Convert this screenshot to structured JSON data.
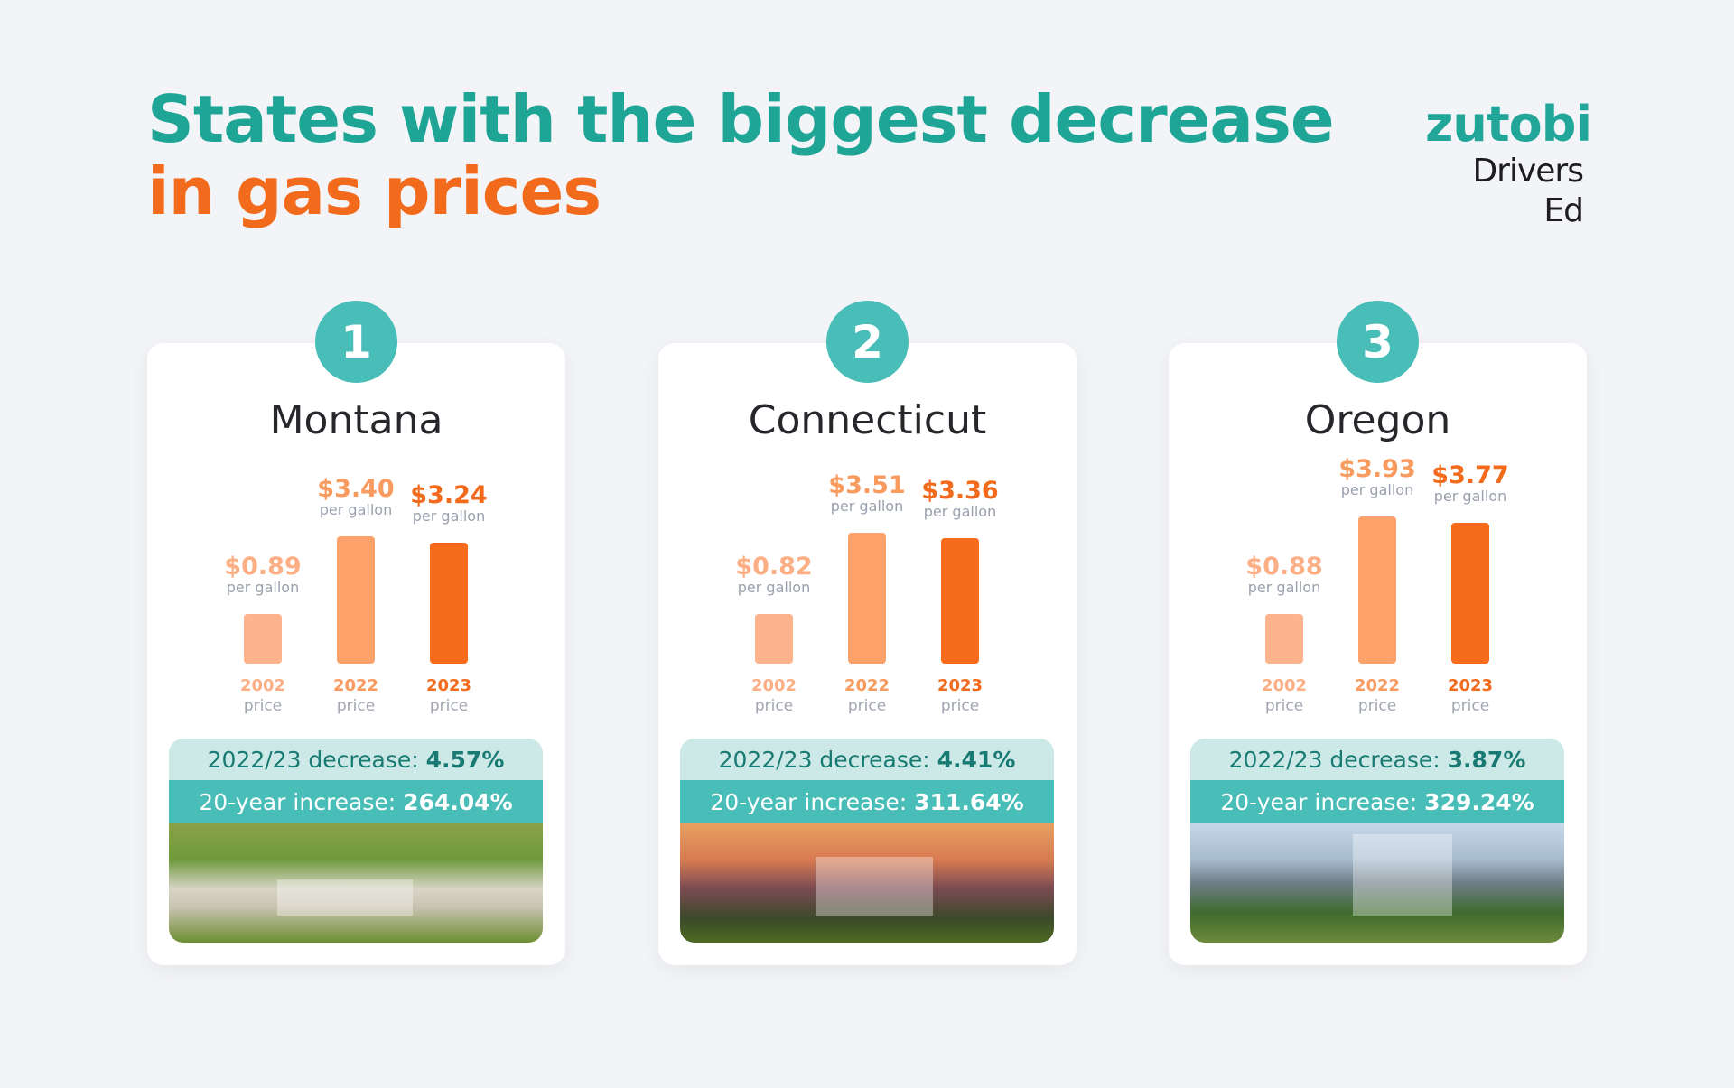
{
  "header": {
    "title_line1": "States with the biggest decrease",
    "title_line2": "in gas prices"
  },
  "logo": {
    "brand": "zutobi",
    "sub": "Drivers Ed"
  },
  "colors": {
    "teal": "#1fa596",
    "orange": "#f26a1b",
    "bar_2002": "#fdb48c",
    "bar_2022": "#fca26a",
    "bar_2023": "#f76b1c"
  },
  "labels": {
    "per_gallon": "per gallon",
    "price": "price",
    "decrease_label": "2022/23 decrease: ",
    "increase_label": "20-year increase: "
  },
  "chart_data": {
    "type": "bar",
    "categories": [
      "2002",
      "2022",
      "2023"
    ],
    "states": [
      {
        "rank": "1",
        "name": "Montana",
        "values": [
          0.89,
          3.4,
          3.24
        ],
        "value_labels": [
          "$0.89",
          "$3.40",
          "$3.24"
        ],
        "decrease": "4.57%",
        "increase": "264.04%"
      },
      {
        "rank": "2",
        "name": "Connecticut",
        "values": [
          0.82,
          3.51,
          3.36
        ],
        "value_labels": [
          "$0.82",
          "$3.51",
          "$3.36"
        ],
        "decrease": "4.41%",
        "increase": "311.64%"
      },
      {
        "rank": "3",
        "name": "Oregon",
        "values": [
          0.88,
          3.93,
          3.77
        ],
        "value_labels": [
          "$0.88",
          "$3.93",
          "$3.77"
        ],
        "decrease": "3.87%",
        "increase": "329.24%"
      }
    ]
  }
}
